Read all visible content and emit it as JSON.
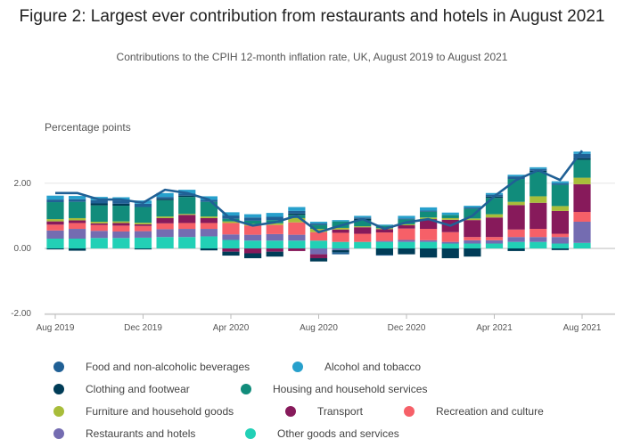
{
  "header": {
    "title": "Figure 2: Largest ever contribution from restaurants and hotels in August 2021",
    "subtitle": "Contributions to the CPIH 12-month inflation rate, UK, August 2019 to August 2021"
  },
  "colors": {
    "food": "#206095",
    "alcohol": "#27a0cc",
    "clothing": "#003c57",
    "housing": "#118c7b",
    "furniture": "#a8bd3a",
    "transport": "#871a5b",
    "recreation": "#f66068",
    "restaurants": "#746cb1",
    "other": "#22d0b6",
    "total_line": "#206095",
    "grid": "#e6e6e6",
    "axis": "#bbbbbb"
  },
  "chart_data": {
    "type": "bar",
    "stacked": true,
    "ylabel": "Percentage points",
    "ylim": [
      -2,
      3.1
    ],
    "yticks": [
      "2.00",
      "0.00",
      "-2.00"
    ],
    "ytick_values": [
      2,
      0,
      -2
    ],
    "x": [
      "Aug 2019",
      "Sep 2019",
      "Oct 2019",
      "Nov 2019",
      "Dec 2019",
      "Jan 2020",
      "Feb 2020",
      "Mar 2020",
      "Apr 2020",
      "May 2020",
      "Jun 2020",
      "Jul 2020",
      "Aug 2020",
      "Sep 2020",
      "Oct 2020",
      "Nov 2020",
      "Dec 2020",
      "Jan 2021",
      "Feb 2021",
      "Mar 2021",
      "Apr 2021",
      "May 2021",
      "Jun 2021",
      "Jul 2021",
      "Aug 2021"
    ],
    "xtick_labels": [
      "Aug 2019",
      "Dec 2019",
      "Apr 2020",
      "Aug 2020",
      "Dec 2020",
      "Apr 2021",
      "Aug 2021"
    ],
    "xtick_indices": [
      0,
      4,
      8,
      12,
      16,
      20,
      24
    ],
    "legend": [
      {
        "key": "food",
        "label": "Food and non-alcoholic beverages"
      },
      {
        "key": "alcohol",
        "label": "Alcohol and tobacco"
      },
      {
        "key": "clothing",
        "label": "Clothing and footwear"
      },
      {
        "key": "housing",
        "label": "Housing and household services"
      },
      {
        "key": "furniture",
        "label": "Furniture and household goods"
      },
      {
        "key": "transport",
        "label": "Transport"
      },
      {
        "key": "recreation",
        "label": "Recreation and culture"
      },
      {
        "key": "restaurants",
        "label": "Restaurants and hotels"
      },
      {
        "key": "other",
        "label": "Other goods and services"
      }
    ],
    "series": [
      {
        "key": "other",
        "values": [
          0.3,
          0.3,
          0.32,
          0.32,
          0.33,
          0.35,
          0.35,
          0.37,
          0.26,
          0.24,
          0.24,
          0.24,
          0.24,
          0.2,
          0.2,
          0.2,
          0.2,
          0.2,
          0.15,
          0.15,
          0.15,
          0.2,
          0.2,
          0.15,
          0.17
        ]
      },
      {
        "key": "restaurants",
        "values": [
          0.25,
          0.3,
          0.22,
          0.2,
          0.2,
          0.24,
          0.25,
          0.23,
          0.17,
          0.18,
          0.2,
          0.18,
          -0.18,
          -0.05,
          0.0,
          0.03,
          0.06,
          0.05,
          0.05,
          0.1,
          0.1,
          0.15,
          0.15,
          0.2,
          0.65
        ]
      },
      {
        "key": "recreation",
        "values": [
          0.18,
          0.18,
          0.18,
          0.18,
          0.16,
          0.18,
          0.18,
          0.18,
          0.35,
          0.28,
          0.28,
          0.38,
          0.26,
          0.28,
          0.25,
          0.26,
          0.35,
          0.35,
          0.3,
          0.1,
          0.1,
          0.23,
          0.25,
          0.1,
          0.3
        ]
      },
      {
        "key": "transport",
        "values": [
          0.1,
          0.08,
          0.05,
          0.08,
          0.05,
          0.16,
          0.25,
          0.15,
          -0.1,
          -0.15,
          -0.1,
          -0.08,
          -0.12,
          0.1,
          0.2,
          0.1,
          0.1,
          0.3,
          0.38,
          0.52,
          0.6,
          0.75,
          0.8,
          0.7,
          0.85
        ]
      },
      {
        "key": "furniture",
        "values": [
          0.07,
          0.07,
          0.05,
          0.05,
          0.05,
          0.05,
          0.03,
          0.05,
          0.05,
          0.05,
          0.05,
          0.13,
          0.1,
          0.05,
          0.03,
          0.03,
          0.03,
          0.05,
          0.05,
          0.05,
          0.1,
          0.1,
          0.2,
          0.15,
          0.2
        ]
      },
      {
        "key": "housing",
        "values": [
          0.52,
          0.5,
          0.5,
          0.48,
          0.48,
          0.5,
          0.52,
          0.45,
          0.08,
          0.1,
          0.1,
          0.1,
          0.12,
          0.2,
          0.18,
          0.08,
          0.15,
          0.18,
          0.1,
          0.3,
          0.5,
          0.7,
          0.75,
          0.65,
          0.55
        ]
      },
      {
        "key": "clothing",
        "values": [
          -0.03,
          -0.07,
          0.06,
          0.06,
          -0.03,
          0.04,
          0.04,
          -0.06,
          -0.12,
          -0.15,
          -0.15,
          0.04,
          -0.1,
          -0.07,
          0.05,
          -0.2,
          -0.18,
          -0.28,
          -0.3,
          -0.25,
          0.04,
          -0.08,
          0.03,
          -0.05,
          0.05
        ]
      },
      {
        "key": "food",
        "values": [
          0.08,
          0.08,
          0.1,
          0.1,
          0.1,
          0.06,
          0.06,
          0.06,
          0.1,
          0.1,
          0.1,
          0.08,
          0.05,
          -0.06,
          0.04,
          -0.02,
          0.03,
          0.03,
          0.0,
          0.04,
          0.06,
          0.08,
          0.06,
          0.05,
          0.13
        ]
      },
      {
        "key": "alcohol",
        "values": [
          0.12,
          0.1,
          0.1,
          0.1,
          0.1,
          0.12,
          0.12,
          0.11,
          0.1,
          0.1,
          0.12,
          0.12,
          0.05,
          0.04,
          0.05,
          0.03,
          0.08,
          0.1,
          0.07,
          0.05,
          0.05,
          0.05,
          0.05,
          0.06,
          0.07
        ]
      }
    ],
    "total_line": {
      "name": "CPIH 12-month rate",
      "values": [
        1.7,
        1.7,
        1.5,
        1.5,
        1.4,
        1.8,
        1.7,
        1.5,
        0.9,
        0.7,
        0.8,
        1.0,
        0.5,
        0.7,
        0.9,
        0.6,
        0.8,
        0.9,
        0.7,
        1.0,
        1.6,
        2.1,
        2.4,
        2.1,
        3.0
      ]
    }
  }
}
